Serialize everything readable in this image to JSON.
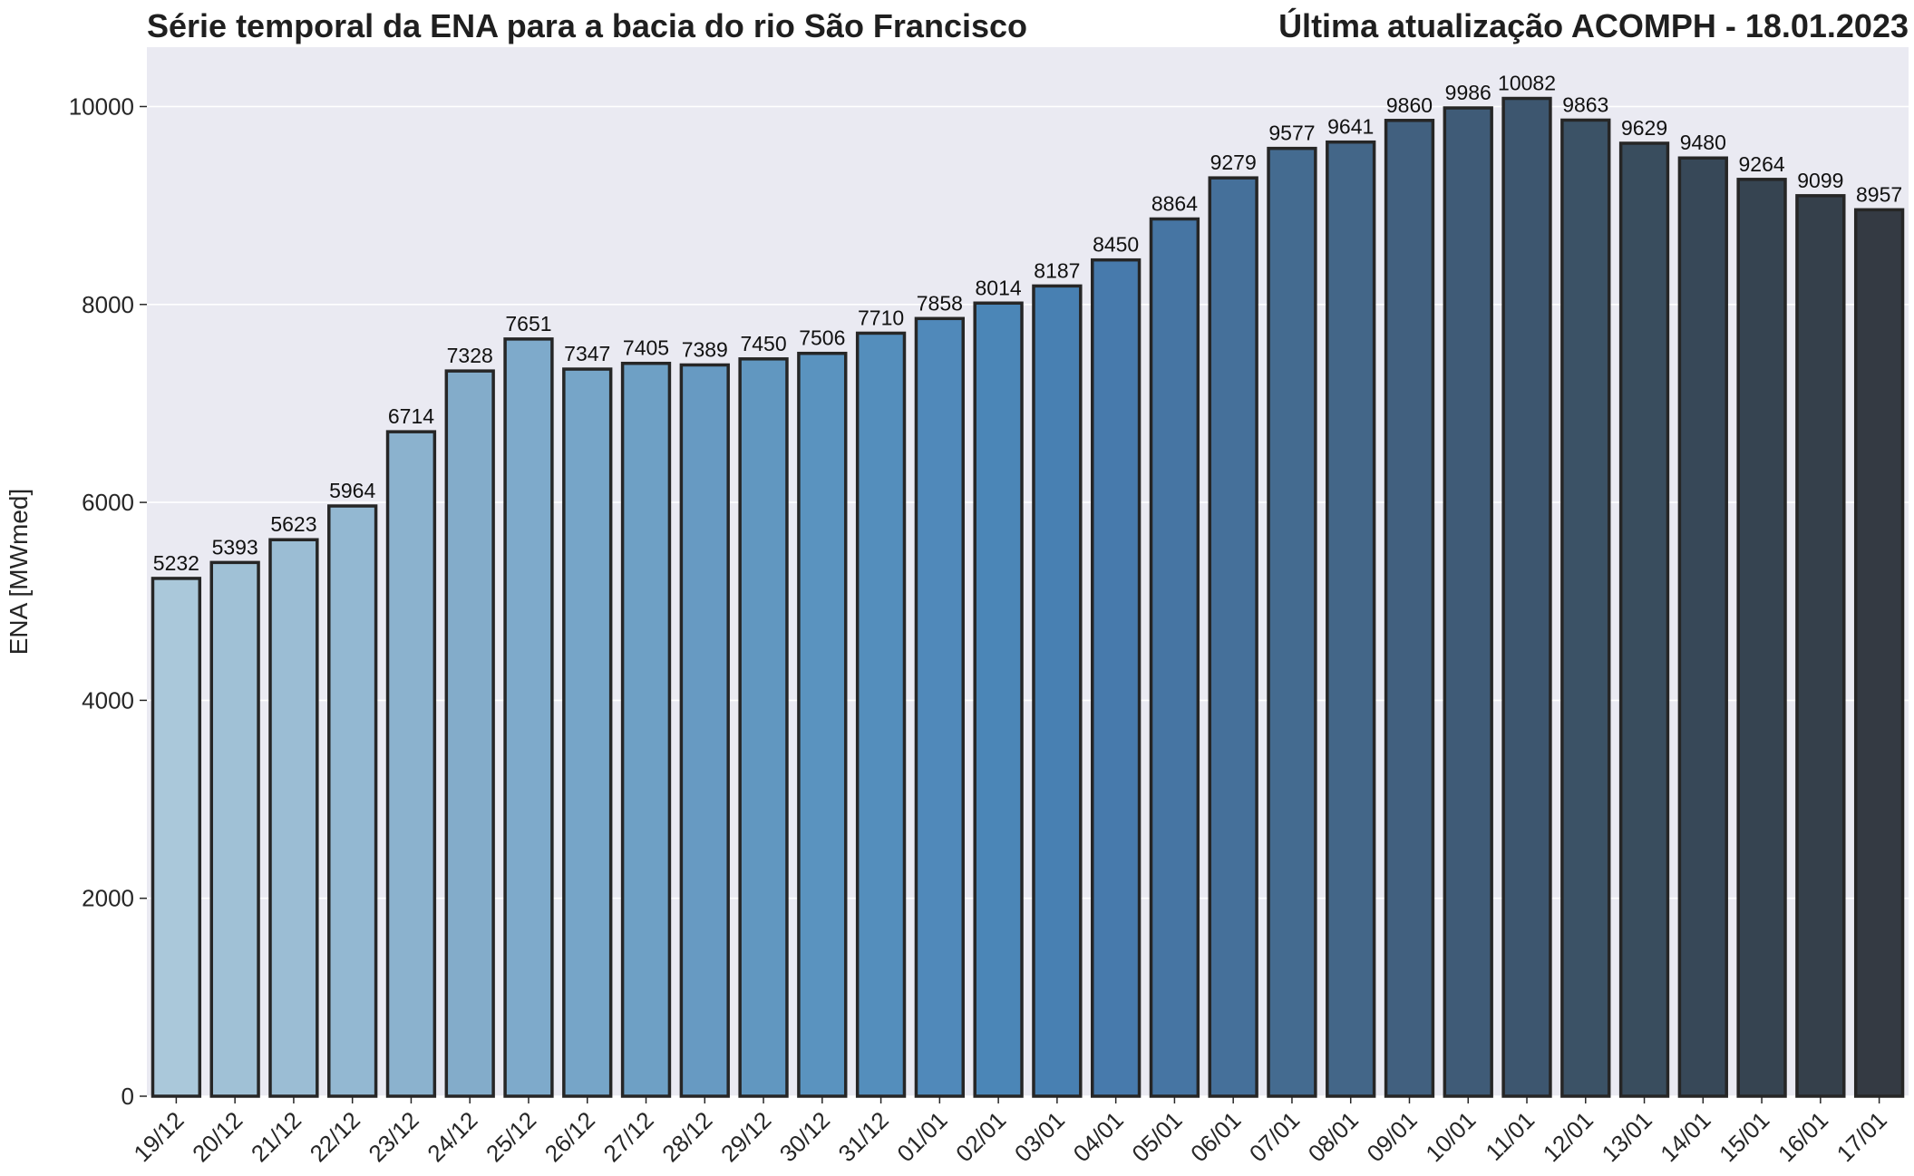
{
  "title_left": "Série temporal da ENA para a bacia do rio São Francisco",
  "title_right": "Última atualização ACOMPH - 18.01.2023",
  "chart_data": {
    "type": "bar",
    "ylabel": "ENA [MWmed]",
    "xlabel": "",
    "ylim": [
      0,
      10600
    ],
    "yticks": [
      0,
      2000,
      4000,
      6000,
      8000,
      10000
    ],
    "grid": true,
    "categories": [
      "19/12",
      "20/12",
      "21/12",
      "22/12",
      "23/12",
      "24/12",
      "25/12",
      "26/12",
      "27/12",
      "28/12",
      "29/12",
      "30/12",
      "31/12",
      "01/01",
      "02/01",
      "03/01",
      "04/01",
      "05/01",
      "06/01",
      "07/01",
      "08/01",
      "09/01",
      "10/01",
      "11/01",
      "12/01",
      "13/01",
      "14/01",
      "15/01",
      "16/01",
      "17/01"
    ],
    "values": [
      5232,
      5393,
      5623,
      5964,
      6714,
      7328,
      7651,
      7347,
      7405,
      7389,
      7450,
      7506,
      7710,
      7858,
      8014,
      8187,
      8450,
      8864,
      9279,
      9577,
      9641,
      9860,
      9986,
      10082,
      9863,
      9629,
      9480,
      9264,
      9099,
      8957
    ],
    "colors": [
      "#aac8da",
      "#a0c1d6",
      "#9bbdd4",
      "#93b8d2",
      "#8bb2ce",
      "#83acca",
      "#7eaacb",
      "#76a5c8",
      "#6ea0c5",
      "#679ac2",
      "#6197c0",
      "#5a93bf",
      "#548ebc",
      "#5089ba",
      "#4b86b7",
      "#4880b2",
      "#477aac",
      "#4675a3",
      "#45709a",
      "#446b90",
      "#436688",
      "#41607f",
      "#3f5b77",
      "#3d566f",
      "#3b5266",
      "#394d5e",
      "#374858",
      "#364451",
      "#35404b",
      "#343a43"
    ],
    "bar_edge_color": "#262626",
    "background_color": "#eaeaf2"
  }
}
